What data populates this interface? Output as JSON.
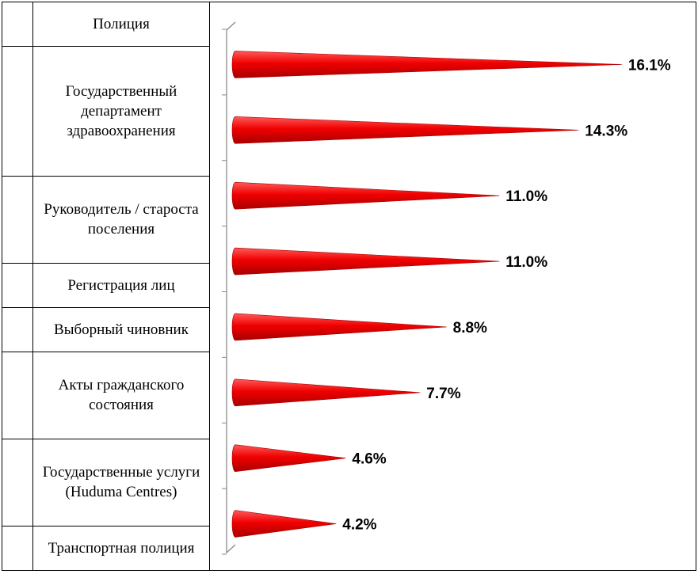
{
  "chart_data": {
    "type": "bar",
    "orientation": "horizontal",
    "bar_shape": "cone",
    "bar_color": "#e8000b",
    "categories": [
      "Полиция",
      "Государственный департамент здравоохранения",
      "Руководитель / староста поселения",
      "Регистрация лиц",
      "Выборный чиновник",
      "Акты гражданского состояния",
      "Государственные услуги (Huduma Centres)",
      "Транспортная полиция"
    ],
    "values": [
      16.1,
      14.3,
      11.0,
      11.0,
      8.8,
      7.7,
      4.6,
      4.2
    ],
    "value_labels": [
      "16.1%",
      "14.3%",
      "11.0%",
      "11.0%",
      "8.8%",
      "7.7%",
      "4.6%",
      "4.2%"
    ],
    "xlim": [
      0,
      20
    ]
  }
}
